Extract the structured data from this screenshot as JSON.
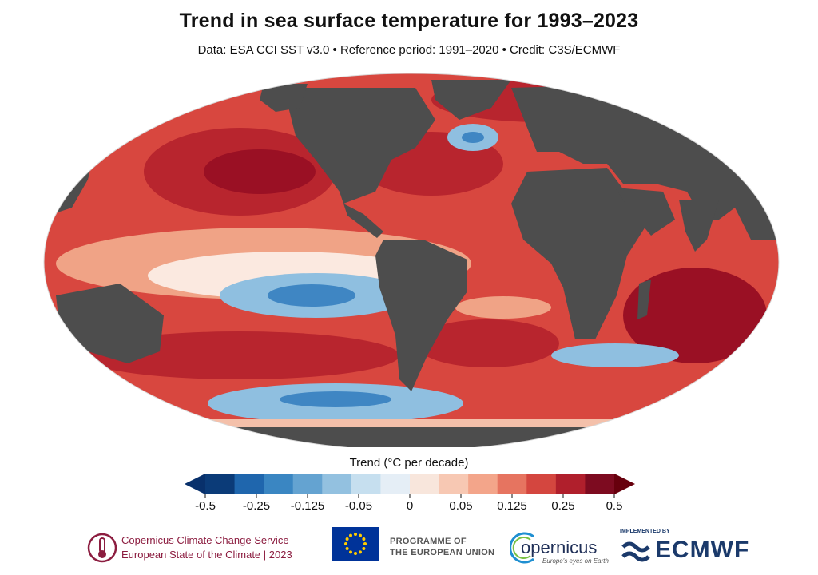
{
  "header": {
    "title": "Trend in sea surface temperature for 1993–2023",
    "subtitle": "Data: ESA CCI SST v3.0 • Reference period: 1991–2020 • Credit: C3S/ECMWF"
  },
  "legend": {
    "label": "Trend (°C per decade)",
    "ticks": [
      "-0.5",
      "-0.25",
      "-0.125",
      "-0.05",
      "0",
      "0.05",
      "0.125",
      "0.25",
      "0.5"
    ],
    "colors": [
      "#0b3b78",
      "#1f66ad",
      "#3a86c2",
      "#64a3d1",
      "#93c1e0",
      "#c6dfef",
      "#e5eef6",
      "#f8e6dc",
      "#f7c8b3",
      "#f3a58a",
      "#e67460",
      "#d4463f",
      "#b01f2c",
      "#7d0b20"
    ],
    "under_color": "#08306b",
    "over_color": "#67000d"
  },
  "map_colors": {
    "land": "#4d4d4d",
    "ocean_warm": "#d8473f",
    "ocean_hot": "#9a1024",
    "ocean_mild": "#f0a386",
    "ocean_neutral": "#fbe9e0",
    "ocean_cool": "#8fbfe0",
    "ocean_cold": "#3f86c3"
  },
  "footer": {
    "c3s_line1": "Copernicus Climate Change Service",
    "c3s_line2": "European State of the Climate | 2023",
    "eu_line1": "PROGRAMME OF",
    "eu_line2": "THE EUROPEAN UNION",
    "copernicus_name": "opernicus",
    "copernicus_tagline": "Europe's eyes on Earth",
    "ecmwf_implemented": "IMPLEMENTED BY",
    "ecmwf_name": "ECMWF"
  }
}
